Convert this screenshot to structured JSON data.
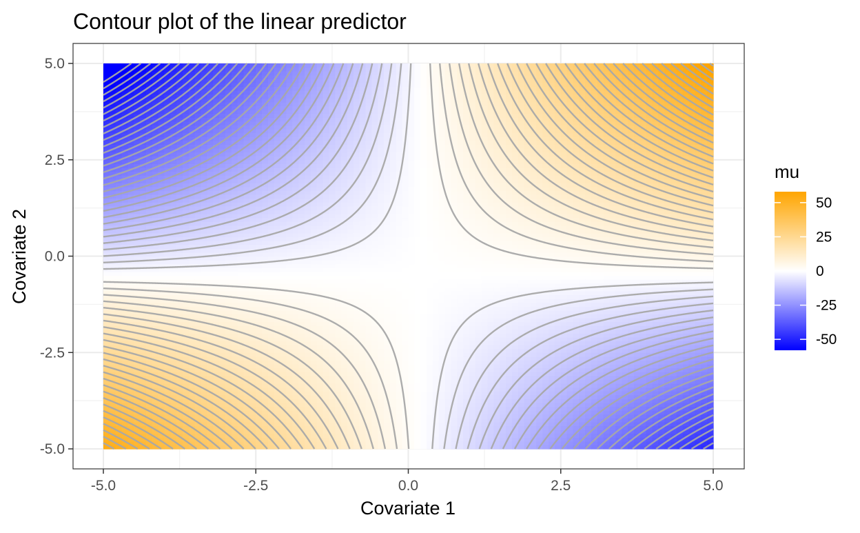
{
  "chart_data": {
    "type": "heatmap",
    "title": "Contour plot of the linear predictor",
    "xlabel": "Covariate 1",
    "ylabel": "Covariate 2",
    "xlim": [
      -5,
      5
    ],
    "ylim": [
      -5,
      5
    ],
    "x_ticks": [
      -5.0,
      -2.5,
      0.0,
      2.5,
      5.0
    ],
    "x_tick_labels": [
      "-5.0",
      "-2.5",
      "0.0",
      "2.5",
      "5.0"
    ],
    "y_ticks": [
      -5.0,
      -2.5,
      0.0,
      2.5,
      5.0
    ],
    "y_tick_labels": [
      "-5.0",
      "-2.5",
      "0.0",
      "2.5",
      "5.0"
    ],
    "grid": true,
    "surface": "mu = 2.3*(x1 - 0.2)*(x2 + 0.5)",
    "contour_levels": {
      "from": -60,
      "to": 60,
      "step": 2
    },
    "contour_color": "#a8a8a8",
    "legend": {
      "title": "mu",
      "position": "right",
      "min": -58,
      "max": 58,
      "ticks": [
        50,
        25,
        0,
        -25,
        -50
      ],
      "tick_labels": [
        "50",
        "25",
        "0",
        "-25",
        "-50"
      ],
      "colors": {
        "low": "#0000ff",
        "mid": "#ffffff",
        "high": "#ffa500"
      }
    }
  }
}
